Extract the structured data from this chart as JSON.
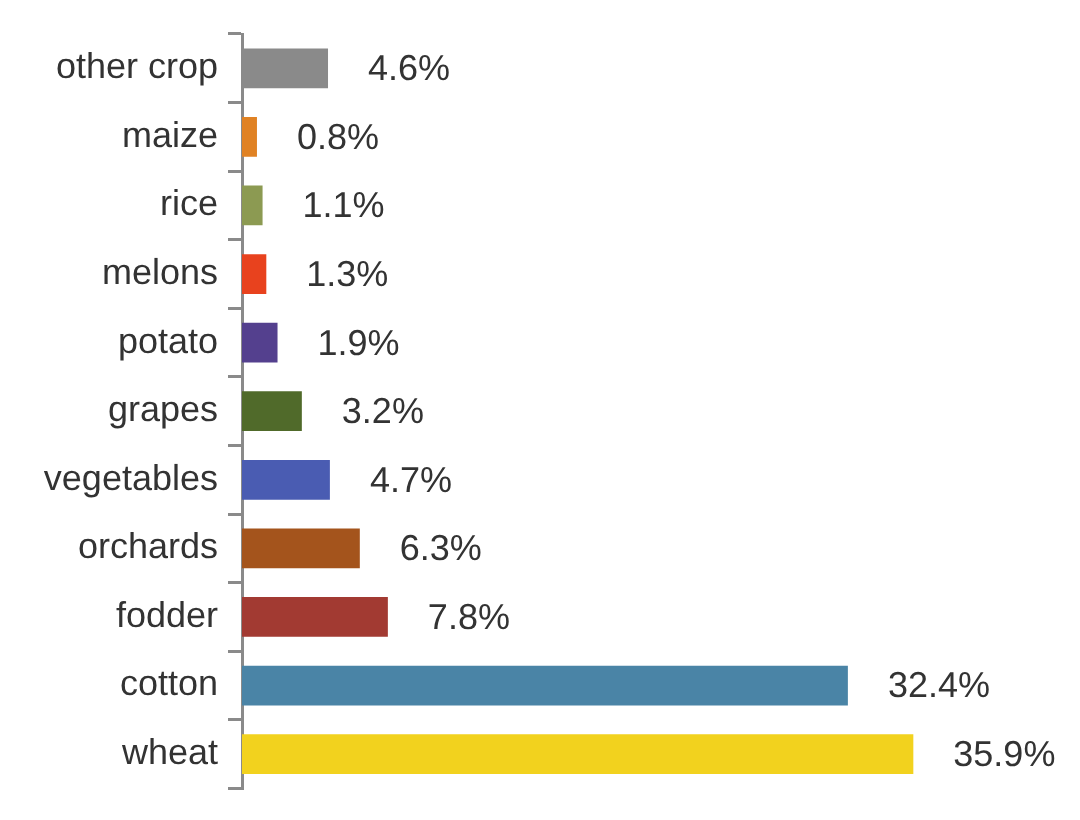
{
  "chart_data": {
    "type": "bar",
    "orientation": "horizontal",
    "categories": [
      "other crop",
      "maize",
      "rice",
      "melons",
      "potato",
      "grapes",
      "vegetables",
      "orchards",
      "fodder",
      "cotton",
      "wheat"
    ],
    "values": [
      4.6,
      0.8,
      1.1,
      1.3,
      1.9,
      3.2,
      4.7,
      6.3,
      7.8,
      32.4,
      35.9
    ],
    "colors": [
      "#8a8a8a",
      "#e08224",
      "#8c9a52",
      "#e8421e",
      "#54408e",
      "#506a2a",
      "#4a5cb2",
      "#a4541c",
      "#a23a32",
      "#4a84a6",
      "#f2d21e"
    ],
    "value_labels": [
      "4.6%",
      "0.8%",
      "1.1%",
      "1.3%",
      "1.9%",
      "3.2%",
      "4.7%",
      "6.3%",
      "7.8%",
      "32.4%",
      "35.9%"
    ],
    "tick_labels": "y"
  }
}
